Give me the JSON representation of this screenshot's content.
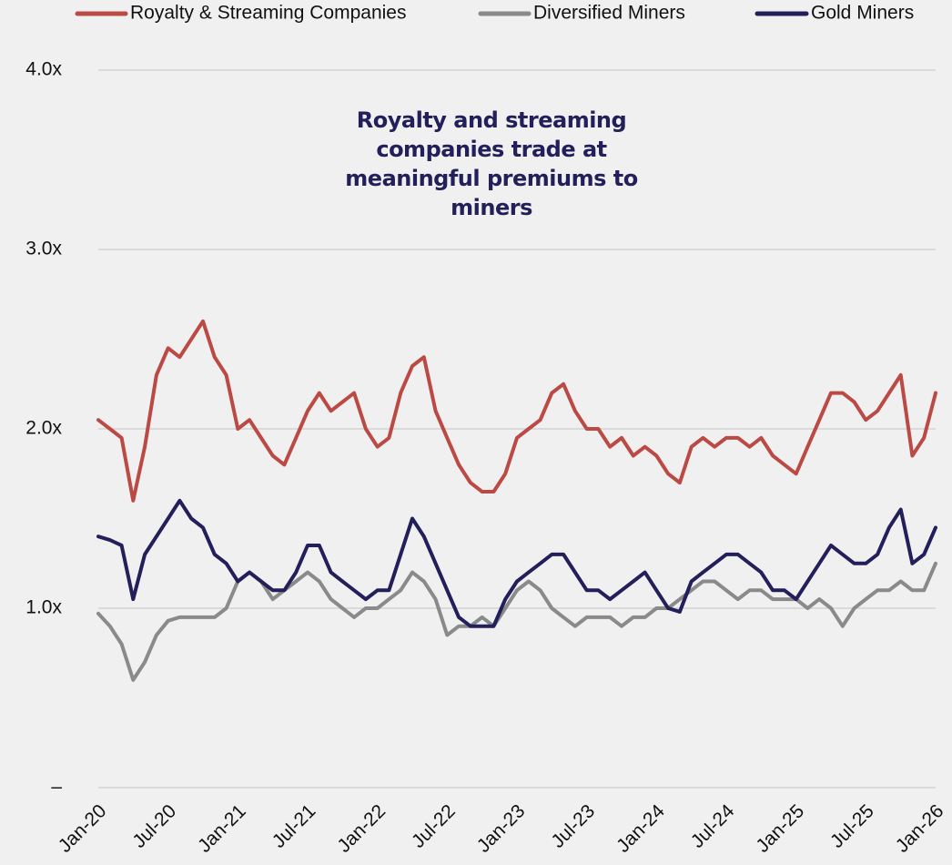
{
  "chart_data": {
    "type": "line",
    "annotation": "Royalty and streaming companies trade at meaningful premiums to miners",
    "categories": [
      "Jan-20",
      null,
      null,
      null,
      null,
      null,
      "Jul-20",
      null,
      null,
      null,
      null,
      null,
      "Jan-21",
      null,
      null,
      null,
      null,
      null,
      "Jul-21",
      null,
      null,
      null,
      null,
      null,
      "Jan-22",
      null,
      null,
      null,
      null,
      null,
      "Jul-22",
      null,
      null,
      null,
      null,
      null,
      "Jan-23",
      null,
      null,
      null,
      null,
      null,
      "Jul-23",
      null,
      null,
      null,
      null,
      null,
      "Jan-24",
      null,
      null,
      null,
      null,
      null,
      "Jul-24",
      null,
      null,
      null,
      null,
      null,
      "Jan-25",
      null,
      null,
      null,
      null,
      null,
      "Jul-25",
      null,
      null,
      null,
      null,
      null,
      "Jan-26"
    ],
    "series": [
      {
        "name": "Royalty & Streaming Companies",
        "color": "#bb4a45",
        "values": [
          2.05,
          2.0,
          1.95,
          1.6,
          1.9,
          2.3,
          2.45,
          2.4,
          2.5,
          2.6,
          2.4,
          2.3,
          2.0,
          2.05,
          1.95,
          1.85,
          1.8,
          1.95,
          2.1,
          2.2,
          2.1,
          2.15,
          2.2,
          2.0,
          1.9,
          1.95,
          2.2,
          2.35,
          2.4,
          2.1,
          1.95,
          1.8,
          1.7,
          1.65,
          1.65,
          1.75,
          1.95,
          2.0,
          2.05,
          2.2,
          2.25,
          2.1,
          2.0,
          2.0,
          1.9,
          1.95,
          1.85,
          1.9,
          1.85,
          1.75,
          1.7,
          1.9,
          1.95,
          1.9,
          1.95,
          1.95,
          1.9,
          1.95,
          1.85,
          1.8,
          1.75,
          1.9,
          2.05,
          2.2,
          2.2,
          2.15,
          2.05,
          2.1,
          2.2,
          2.3,
          1.85,
          1.95,
          2.2
        ]
      },
      {
        "name": "Diversified Miners",
        "color": "#8a8a8a",
        "values": [
          0.97,
          0.9,
          0.8,
          0.6,
          0.7,
          0.85,
          0.93,
          0.95,
          0.95,
          0.95,
          0.95,
          1.0,
          1.15,
          1.2,
          1.15,
          1.05,
          1.1,
          1.15,
          1.2,
          1.15,
          1.05,
          1.0,
          0.95,
          1.0,
          1.0,
          1.05,
          1.1,
          1.2,
          1.15,
          1.05,
          0.85,
          0.9,
          0.9,
          0.95,
          0.9,
          1.0,
          1.1,
          1.15,
          1.1,
          1.0,
          0.95,
          0.9,
          0.95,
          0.95,
          0.95,
          0.9,
          0.95,
          0.95,
          1.0,
          1.0,
          1.05,
          1.1,
          1.15,
          1.15,
          1.1,
          1.05,
          1.1,
          1.1,
          1.05,
          1.05,
          1.05,
          1.0,
          1.05,
          1.0,
          0.9,
          1.0,
          1.05,
          1.1,
          1.1,
          1.15,
          1.1,
          1.1,
          1.25
        ]
      },
      {
        "name": "Gold Miners",
        "color": "#221f5a",
        "values": [
          1.4,
          1.38,
          1.35,
          1.05,
          1.3,
          1.4,
          1.5,
          1.6,
          1.5,
          1.45,
          1.3,
          1.25,
          1.15,
          1.2,
          1.15,
          1.1,
          1.1,
          1.2,
          1.35,
          1.35,
          1.2,
          1.15,
          1.1,
          1.05,
          1.1,
          1.1,
          1.3,
          1.5,
          1.4,
          1.25,
          1.1,
          0.95,
          0.9,
          0.9,
          0.9,
          1.05,
          1.15,
          1.2,
          1.25,
          1.3,
          1.3,
          1.2,
          1.1,
          1.1,
          1.05,
          1.1,
          1.15,
          1.2,
          1.1,
          1.0,
          0.98,
          1.15,
          1.2,
          1.25,
          1.3,
          1.3,
          1.25,
          1.2,
          1.1,
          1.1,
          1.05,
          1.15,
          1.25,
          1.35,
          1.3,
          1.25,
          1.25,
          1.3,
          1.45,
          1.55,
          1.25,
          1.3,
          1.45
        ]
      }
    ],
    "ylim": [
      0,
      4
    ],
    "yticks": [
      {
        "value": 0,
        "label": "–"
      },
      {
        "value": 1,
        "label": "1.0x"
      },
      {
        "value": 2,
        "label": "2.0x"
      },
      {
        "value": 3,
        "label": "3.0x"
      },
      {
        "value": 4,
        "label": "4.0x"
      }
    ],
    "grid": true,
    "legend": "top"
  }
}
